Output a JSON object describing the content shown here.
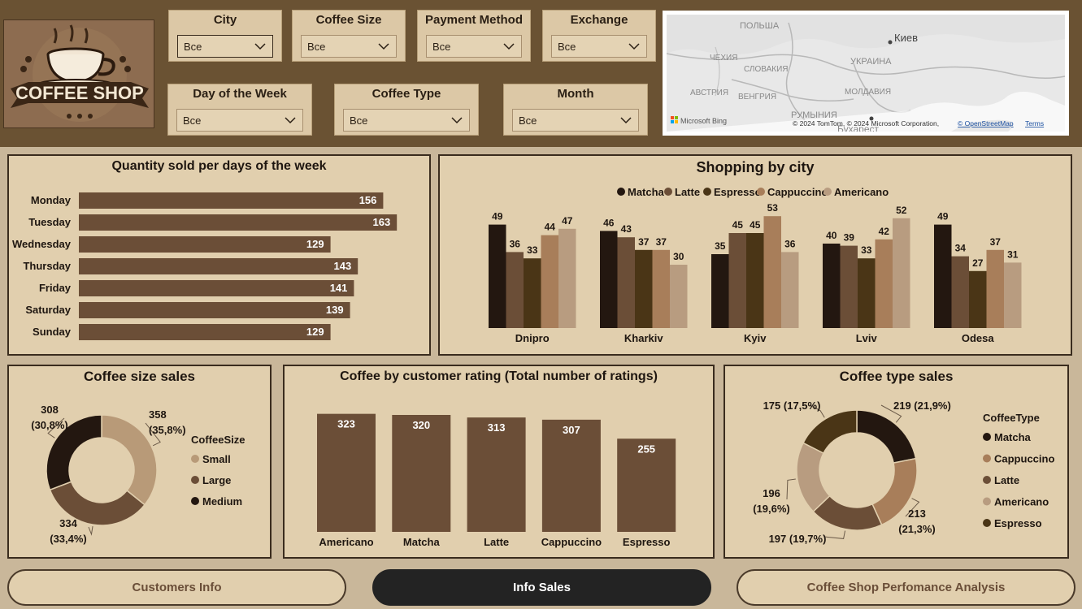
{
  "logo": {
    "text": "COFFEE SHOP",
    "icon": "coffee-cup-icon"
  },
  "filters": [
    {
      "label": "City",
      "value": "Все"
    },
    {
      "label": "Coffee Size",
      "value": "Все"
    },
    {
      "label": "Payment Method",
      "value": "Все"
    },
    {
      "label": "Exchange",
      "value": "Все"
    },
    {
      "label": "Day of the Week",
      "value": "Все"
    },
    {
      "label": "Coffee Type",
      "value": "Все"
    },
    {
      "label": "Month",
      "value": "Все"
    }
  ],
  "map": {
    "labels": [
      "ПОЛЬША",
      "Киев",
      "УКРАИНА",
      "ЧЕХИЯ",
      "СЛОВАКИЯ",
      "АВСТРИЯ",
      "ВЕНГРИЯ",
      "МОЛДАВИЯ",
      "РУМЫНИЯ",
      "Бухарест"
    ],
    "brand": "Microsoft Bing",
    "copyright": "© 2024 TomTom, © 2024 Microsoft Corporation,",
    "osm_link": "© OpenStreetMap",
    "terms_link": "Terms"
  },
  "colors": {
    "bar": "#6b4e37",
    "matcha": "#231710",
    "latte": "#6b4e37",
    "espresso": "#4a3516",
    "cappuccino": "#a87e5a",
    "americano": "#b89c80",
    "small": "#b89a78",
    "large": "#6b4e37",
    "medium": "#231710"
  },
  "chart_data": [
    {
      "id": "days",
      "type": "bar",
      "orientation": "horizontal",
      "title": "Quantity sold per days of the week",
      "categories": [
        "Monday",
        "Tuesday",
        "Wednesday",
        "Thursday",
        "Friday",
        "Saturday",
        "Sunday"
      ],
      "values": [
        156,
        163,
        129,
        143,
        141,
        139,
        129
      ]
    },
    {
      "id": "city",
      "type": "bar",
      "title": "Shopping by city",
      "categories": [
        "Dnipro",
        "Kharkiv",
        "Kyiv",
        "Lviv",
        "Odesa"
      ],
      "legend_position": "top",
      "series": [
        {
          "name": "Matcha",
          "values": [
            49,
            46,
            35,
            40,
            49
          ]
        },
        {
          "name": "Latte",
          "values": [
            36,
            43,
            45,
            39,
            34
          ]
        },
        {
          "name": "Espresso",
          "values": [
            33,
            37,
            45,
            33,
            27
          ]
        },
        {
          "name": "Cappuccino",
          "values": [
            44,
            37,
            53,
            42,
            37
          ]
        },
        {
          "name": "Americano",
          "values": [
            47,
            30,
            36,
            52,
            31
          ]
        }
      ]
    },
    {
      "id": "size",
      "type": "pie",
      "donut": true,
      "title": "Coffee size sales",
      "legend_title": "CoffeeSize",
      "legend_position": "right",
      "labels": [
        "Small",
        "Large",
        "Medium"
      ],
      "values": [
        358,
        334,
        308
      ],
      "percent_labels": [
        "35,8%",
        "33,4%",
        "30,8%"
      ]
    },
    {
      "id": "rating",
      "type": "bar",
      "title": "Coffee by customer rating (Total number of ratings)",
      "categories": [
        "Americano",
        "Matcha",
        "Latte",
        "Cappuccino",
        "Espresso"
      ],
      "values": [
        323,
        320,
        313,
        307,
        255
      ]
    },
    {
      "id": "type",
      "type": "pie",
      "donut": true,
      "title": "Coffee type sales",
      "legend_title": "CoffeeType",
      "legend_position": "right",
      "labels": [
        "Matcha",
        "Cappuccino",
        "Latte",
        "Americano",
        "Espresso"
      ],
      "values": [
        219,
        213,
        197,
        196,
        175
      ],
      "percent_labels": [
        "21,9%",
        "21,3%",
        "19,7%",
        "19,6%",
        "17,5%"
      ]
    }
  ],
  "nav": [
    {
      "label": "Customers Info",
      "active": false
    },
    {
      "label": "Info Sales",
      "active": true
    },
    {
      "label": "Coffee Shop Perfomance Analysis",
      "active": false
    }
  ]
}
